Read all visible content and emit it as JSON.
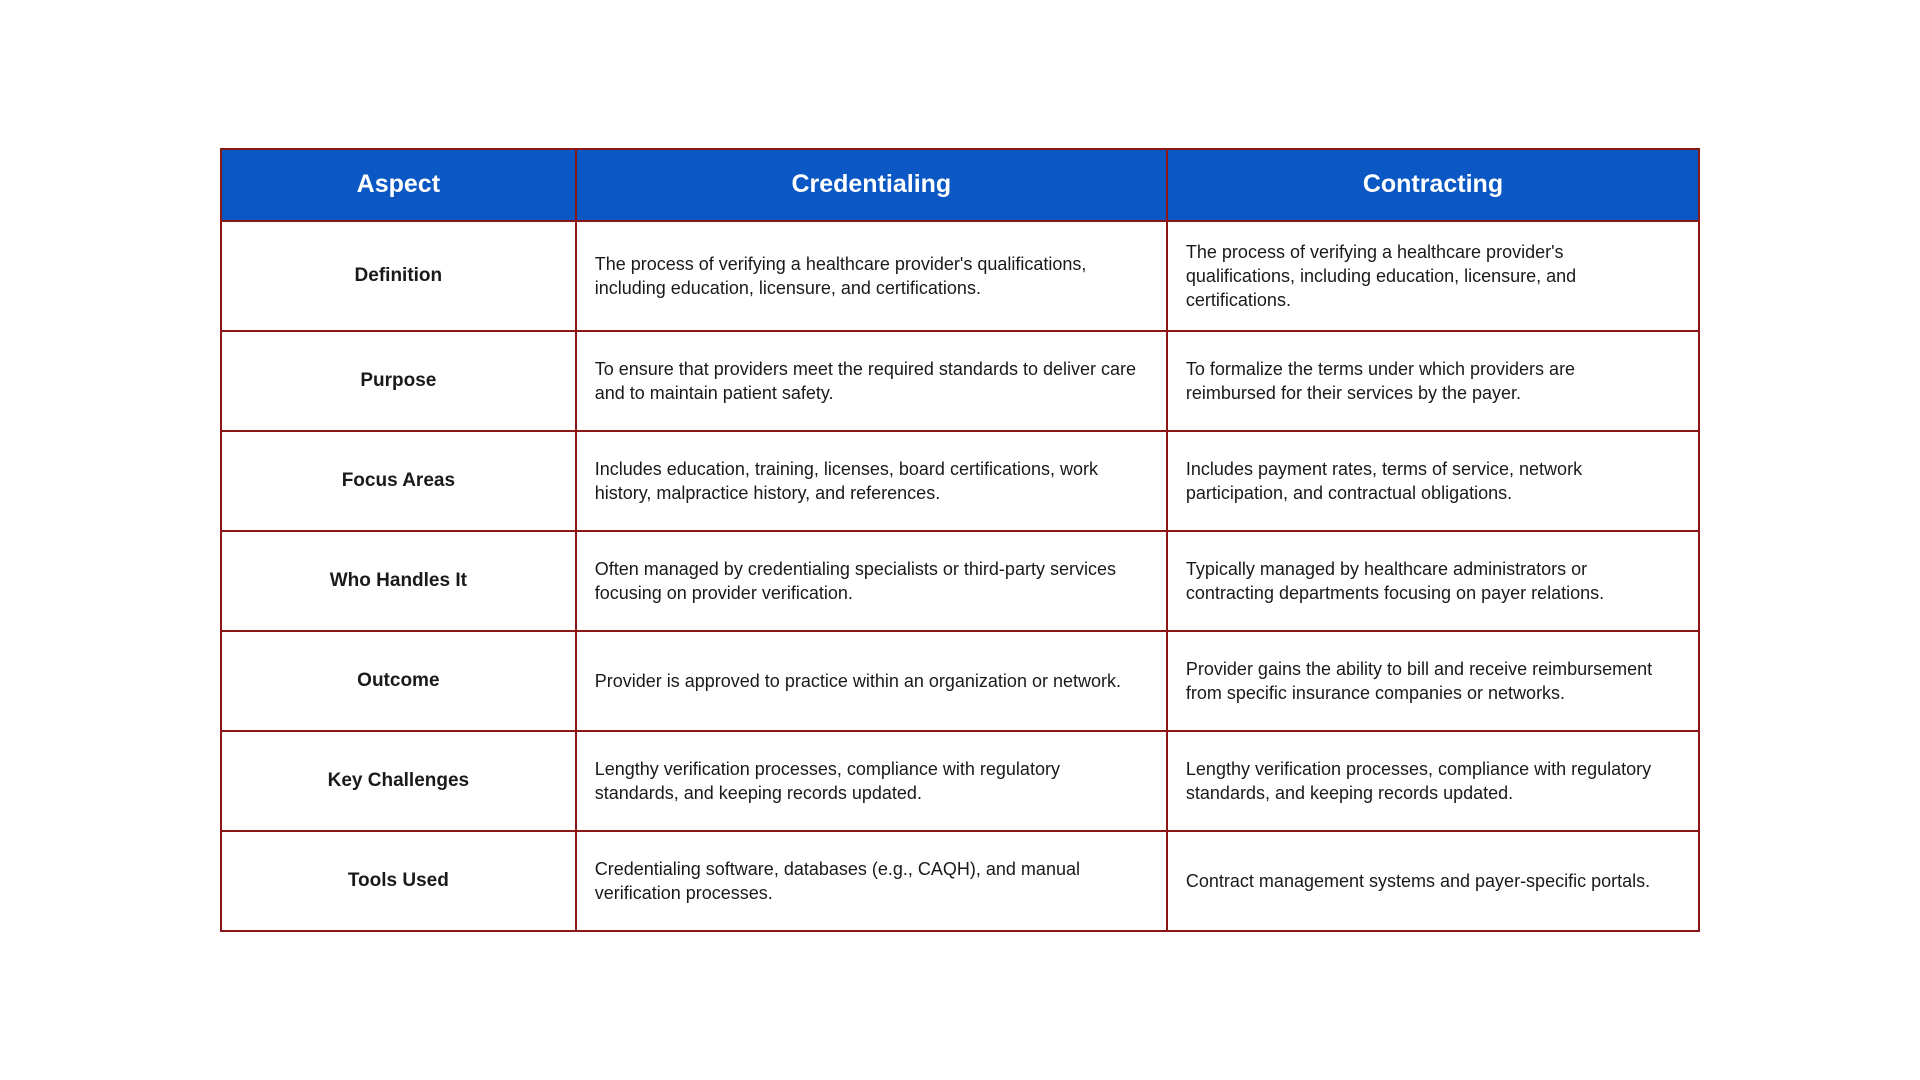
{
  "table": {
    "type": "table",
    "header_bg": "#0b58c4",
    "header_fg": "#ffffff",
    "border_color": "#8a1616",
    "cell_bg": "#ffffff",
    "cell_fg": "#1a1a1a",
    "header_fontsize": 25,
    "aspect_fontsize": 19,
    "cell_fontsize": 18,
    "columns": [
      "Aspect",
      "Credentialing",
      "Contracting"
    ],
    "col_widths_pct": [
      24,
      40,
      36
    ],
    "rows": [
      {
        "aspect": "Definition",
        "credentialing": "The process of verifying a healthcare provider's qualifications, including education, licensure, and certifications.",
        "contracting": "The process of verifying a healthcare provider's qualifications, including education, licensure, and certifications."
      },
      {
        "aspect": "Purpose",
        "credentialing": "To ensure that providers meet the required standards to deliver care and to maintain patient safety.",
        "contracting": "To formalize the terms under which providers are reimbursed for their services by the payer."
      },
      {
        "aspect": "Focus Areas",
        "credentialing": "Includes education, training, licenses, board certifications, work history, malpractice history, and references.",
        "contracting": "Includes payment rates, terms of service, network participation, and contractual obligations."
      },
      {
        "aspect": "Who Handles It",
        "credentialing": "Often managed by credentialing specialists or third-party services focusing on provider verification.",
        "contracting": "Typically managed by healthcare administrators or contracting departments focusing on payer relations."
      },
      {
        "aspect": "Outcome",
        "credentialing": "Provider is approved to practice within an organization or network.",
        "contracting": "Provider gains the ability to bill and receive reimbursement from specific insurance companies or networks."
      },
      {
        "aspect": "Key Challenges",
        "credentialing": "Lengthy verification processes, compliance with regulatory standards, and keeping records updated.",
        "contracting": "Lengthy verification processes, compliance with regulatory standards, and keeping records updated."
      },
      {
        "aspect": "Tools Used",
        "credentialing": "Credentialing software, databases (e.g., CAQH), and manual verification processes.",
        "contracting": "Contract management systems and payer-specific portals."
      }
    ]
  }
}
